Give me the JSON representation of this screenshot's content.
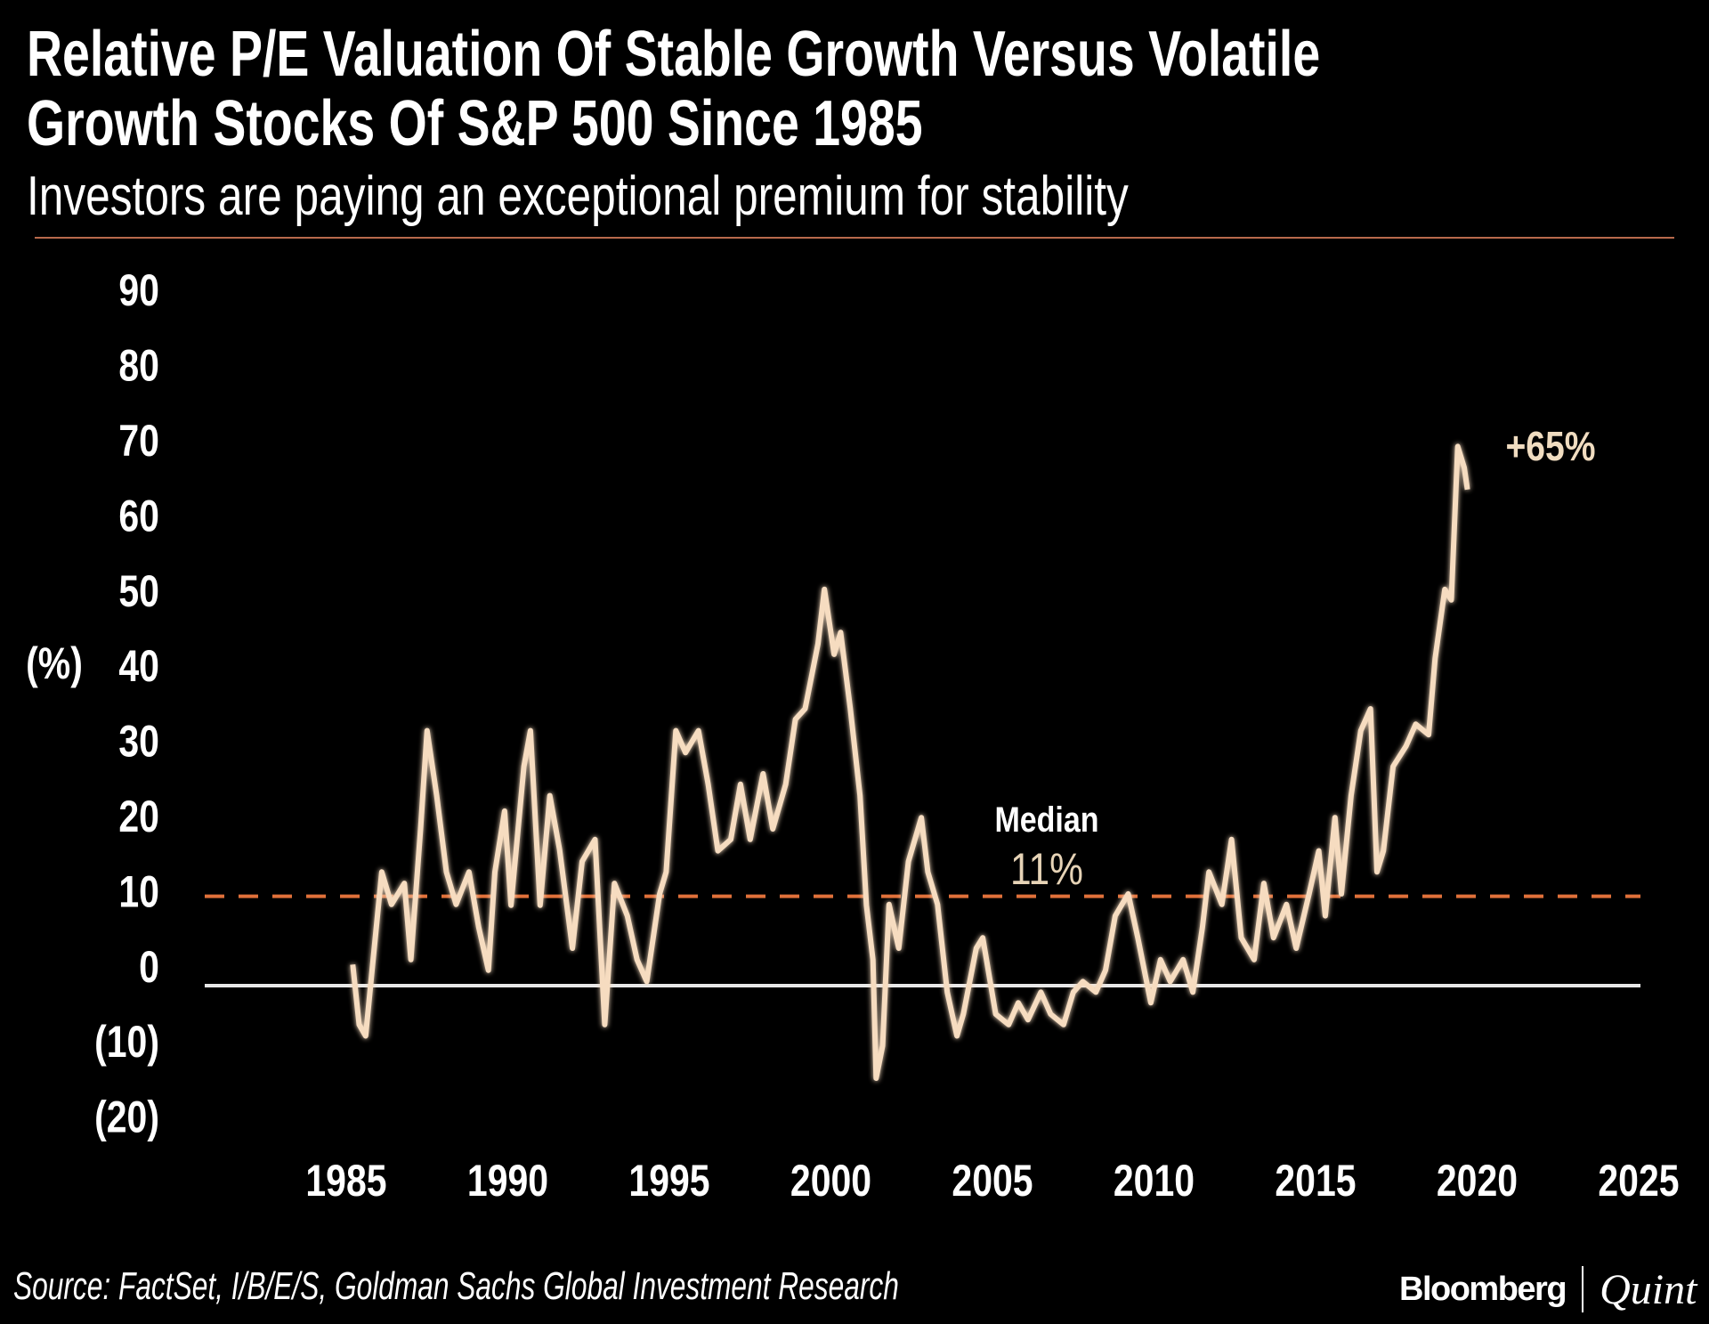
{
  "header": {
    "title_line1": "Relative P/E Valuation Of Stable Growth Versus Volatile",
    "title_line2": "Growth Stocks Of S&P 500 Since 1985",
    "subtitle": "Investors are paying an exceptional premium for stability"
  },
  "footer": {
    "source": "Source: FactSet, I/B/E/S, Goldman Sachs Global Investment Research",
    "logo_left": "Bloomberg",
    "logo_right": "Quint"
  },
  "colors": {
    "background": "#000000",
    "series_line": "#f6dcc0",
    "median_line": "#e0703a",
    "zero_line": "#e8e8e8",
    "rule": "#b8694c",
    "annotation": "#e6d3b6"
  },
  "chart_data": {
    "type": "line",
    "title": "Relative P/E Valuation Of Stable Growth Versus Volatile Growth Stocks Of S&P 500 Since 1985",
    "subtitle": "Investors are paying an exceptional premium for stability",
    "ylabel": "(%)",
    "xlabel": "",
    "ylim": [
      -20,
      90
    ],
    "xlim": [
      1985,
      2025
    ],
    "y_ticks": [
      90,
      80,
      70,
      60,
      50,
      40,
      30,
      20,
      10,
      0,
      -10,
      -20
    ],
    "y_tick_labels": [
      "90",
      "80",
      "70",
      "60",
      "50",
      "40",
      "30",
      "20",
      "10",
      "0",
      "(10)",
      "(20)"
    ],
    "x_ticks": [
      1985,
      1990,
      1995,
      2000,
      2005,
      2010,
      2015,
      2020,
      2025
    ],
    "x_tick_labels": [
      "1985",
      "1990",
      "1995",
      "2000",
      "2005",
      "2010",
      "2015",
      "2020",
      "2025"
    ],
    "grid": false,
    "legend": "none",
    "reference_lines": [
      {
        "value": 11,
        "style": "dashed",
        "label": "Median",
        "value_label": "11%"
      },
      {
        "value": 0,
        "style": "solid"
      }
    ],
    "annotations": [
      {
        "text": "+65%"
      }
    ],
    "x": [
      1985.2,
      1985.4,
      1985.6,
      1985.8,
      1986.1,
      1986.4,
      1986.8,
      1987.0,
      1987.3,
      1987.5,
      1987.8,
      1988.1,
      1988.4,
      1988.8,
      1989.1,
      1989.4,
      1989.6,
      1989.9,
      1990.1,
      1990.5,
      1990.7,
      1991.0,
      1991.3,
      1991.6,
      1992.0,
      1992.3,
      1992.7,
      1993.0,
      1993.3,
      1993.7,
      1994.0,
      1994.3,
      1994.7,
      1994.9,
      1995.2,
      1995.5,
      1995.9,
      1996.2,
      1996.5,
      1996.9,
      1997.2,
      1997.5,
      1997.9,
      1998.2,
      1998.6,
      1998.9,
      1999.2,
      1999.6,
      1999.8,
      2000.1,
      2000.3,
      2000.6,
      2000.9,
      2001.1,
      2001.3,
      2001.4,
      2001.6,
      2001.8,
      2002.1,
      2002.4,
      2002.8,
      2003.0,
      2003.3,
      2003.6,
      2003.9,
      2004.1,
      2004.5,
      2004.7,
      2005.1,
      2005.5,
      2005.8,
      2006.1,
      2006.5,
      2006.8,
      2007.2,
      2007.5,
      2007.8,
      2008.2,
      2008.5,
      2008.8,
      2009.2,
      2009.5,
      2009.9,
      2010.2,
      2010.5,
      2010.9,
      2011.2,
      2011.5,
      2011.7,
      2012.1,
      2012.4,
      2012.7,
      2013.1,
      2013.4,
      2013.7,
      2014.1,
      2014.4,
      2014.8,
      2015.1,
      2015.3,
      2015.6,
      2015.8,
      2016.1,
      2016.4,
      2016.7,
      2016.9,
      2017.1,
      2017.4,
      2017.8,
      2018.1,
      2018.5,
      2018.7,
      2019.0,
      2019.2,
      2019.4,
      2019.6,
      2019.7
    ],
    "values": [
      2.6,
      -4.8,
      -6.2,
      1.9,
      14.0,
      10.0,
      12.6,
      3.2,
      19.3,
      31.4,
      23.4,
      14.0,
      10.0,
      14.0,
      7.2,
      1.9,
      14.0,
      21.5,
      9.9,
      27.0,
      31.4,
      9.9,
      23.4,
      16.8,
      4.6,
      15.3,
      18.0,
      -4.8,
      12.6,
      8.6,
      3.2,
      0.5,
      11.3,
      14.0,
      31.4,
      28.7,
      31.4,
      24.8,
      16.6,
      18.0,
      24.8,
      18.0,
      26.1,
      19.3,
      24.8,
      32.8,
      34.1,
      42.1,
      48.8,
      40.8,
      43.5,
      34.1,
      23.4,
      9.9,
      3.2,
      -11.4,
      -7.4,
      10.0,
      4.6,
      15.3,
      20.7,
      14.0,
      10.0,
      -0.8,
      -6.2,
      -3.5,
      4.6,
      5.9,
      -3.5,
      -4.8,
      -2.1,
      -4.2,
      -0.8,
      -3.5,
      -4.8,
      -0.8,
      0.5,
      -0.8,
      1.9,
      8.6,
      11.3,
      5.9,
      -2.1,
      3.2,
      0.5,
      3.2,
      -0.8,
      7.2,
      14.0,
      10.0,
      18.0,
      5.9,
      3.2,
      12.6,
      5.9,
      10.0,
      4.6,
      11.3,
      16.6,
      8.6,
      20.7,
      11.3,
      23.4,
      31.4,
      34.1,
      14.0,
      16.6,
      27.0,
      29.5,
      32.2,
      30.9,
      40.3,
      48.8,
      47.5,
      66.4,
      63.8,
      61.1
    ]
  }
}
